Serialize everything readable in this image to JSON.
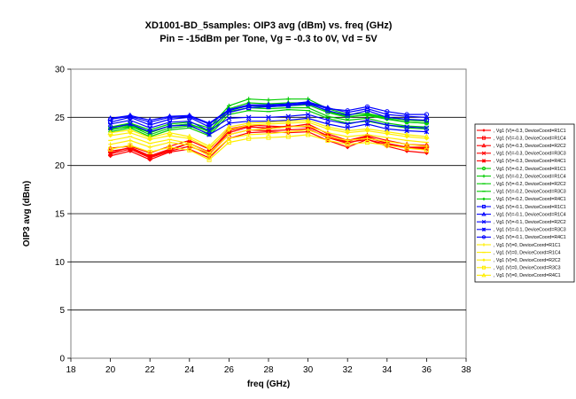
{
  "chart_data": {
    "type": "line",
    "title_line1": "XD1001-BD_5samples: OIP3 avg (dBm) vs. freq (GHz)",
    "title_line2": "Pin  = -15dBm per Tone, Vg = -0.3 to 0V, Vd = 5V",
    "xlabel": "freq (GHz)",
    "ylabel": "OIP3 avg (dBm)",
    "xlim": [
      18,
      38
    ],
    "ylim": [
      0,
      30
    ],
    "xticks": [
      18,
      20,
      22,
      24,
      26,
      28,
      30,
      32,
      34,
      36,
      38
    ],
    "yticks": [
      0,
      5,
      10,
      15,
      20,
      25,
      30
    ],
    "grid": "horizontal",
    "legend_position": "right",
    "x": [
      20,
      21,
      22,
      23,
      24,
      25,
      26,
      27,
      28,
      29,
      30,
      31,
      32,
      33,
      34,
      35,
      36
    ],
    "series": [
      {
        "name": ", Vg1 (V)=-0.3, DeviceCoord=R1C1",
        "color": "#ff0000",
        "marker": "diamond",
        "values": [
          21.0,
          21.5,
          20.6,
          21.4,
          21.7,
          20.8,
          22.8,
          23.4,
          23.5,
          23.4,
          23.5,
          22.6,
          21.9,
          22.7,
          22.0,
          21.5,
          21.3
        ]
      },
      {
        "name": ", Vg1 (V)=-0.3, DeviceCoord=R1C4",
        "color": "#ff0000",
        "marker": "square",
        "values": [
          21.5,
          21.8,
          20.9,
          21.6,
          22.3,
          21.4,
          23.6,
          24.1,
          23.8,
          24.0,
          24.1,
          23.0,
          22.4,
          22.7,
          22.2,
          21.9,
          21.8
        ]
      },
      {
        "name": ", Vg1 (V)=-0.3, DeviceCoord=R2C2",
        "color": "#ff0000",
        "marker": "triangle",
        "values": [
          21.8,
          22.0,
          21.3,
          22.0,
          22.6,
          21.7,
          23.8,
          24.2,
          24.1,
          24.0,
          24.3,
          23.3,
          22.6,
          23.1,
          22.6,
          22.2,
          22.1
        ]
      },
      {
        "name": ", Vg1 (V)=-0.3, DeviceCoord=R3C3",
        "color": "#ff0000",
        "marker": "x",
        "values": [
          21.2,
          21.7,
          20.8,
          21.5,
          22.0,
          21.2,
          23.2,
          23.7,
          23.6,
          23.7,
          23.8,
          22.9,
          22.3,
          22.9,
          22.3,
          21.8,
          21.7
        ]
      },
      {
        "name": ", Vg1 (V)=-0.3, DeviceCoord=R4C1",
        "color": "#ff0000",
        "marker": "star",
        "values": [
          21.3,
          21.9,
          21.0,
          21.7,
          22.3,
          21.3,
          23.4,
          24.0,
          23.9,
          24.1,
          24.0,
          23.1,
          22.5,
          23.0,
          22.3,
          21.9,
          21.9
        ]
      },
      {
        "name": ", Vg1 (V)=-0.2, DeviceCoord=R1C1",
        "color": "#00cc00",
        "marker": "circle",
        "values": [
          23.8,
          24.0,
          23.5,
          24.1,
          24.3,
          23.6,
          25.8,
          26.2,
          26.1,
          26.2,
          26.3,
          25.5,
          25.0,
          25.3,
          24.9,
          24.5,
          24.4
        ]
      },
      {
        "name": ", Vg1 (V)=-0.2, DeviceCoord=R1C4",
        "color": "#00cc00",
        "marker": "plus",
        "values": [
          24.0,
          24.4,
          23.7,
          24.3,
          24.5,
          23.9,
          26.2,
          26.9,
          26.8,
          26.9,
          26.9,
          25.9,
          25.3,
          25.4,
          25.0,
          24.7,
          24.6
        ]
      },
      {
        "name": ", Vg1 (V)=-0.2, DeviceCoord=R2C2",
        "color": "#00cc00",
        "marker": "dash",
        "values": [
          23.7,
          24.1,
          23.2,
          23.9,
          24.1,
          23.3,
          25.6,
          26.0,
          25.9,
          26.0,
          26.0,
          25.1,
          24.7,
          24.9,
          24.4,
          24.1,
          24.0
        ]
      },
      {
        "name": ", Vg1 (V)=-0.2, DeviceCoord=R3C3",
        "color": "#00cc00",
        "marker": "dash",
        "values": [
          23.5,
          23.9,
          23.0,
          23.7,
          23.9,
          23.1,
          25.3,
          25.7,
          25.6,
          25.8,
          25.7,
          24.9,
          24.4,
          24.6,
          24.2,
          23.9,
          23.8
        ]
      },
      {
        "name": ", Vg1 (V)=-0.2, DeviceCoord=R4C1",
        "color": "#00cc00",
        "marker": "diamond",
        "values": [
          23.9,
          24.2,
          23.4,
          24.1,
          24.3,
          23.5,
          25.9,
          26.5,
          26.4,
          26.5,
          26.5,
          25.6,
          25.1,
          25.2,
          24.8,
          24.5,
          24.4
        ]
      },
      {
        "name": ", Vg1 (V)=-0.1, DeviceCoord=R1C1",
        "color": "#0000ff",
        "marker": "square",
        "values": [
          24.5,
          25.0,
          24.2,
          24.8,
          25.0,
          24.0,
          25.5,
          26.0,
          26.1,
          26.2,
          26.4,
          25.7,
          25.2,
          25.7,
          25.0,
          24.8,
          24.7
        ]
      },
      {
        "name": ", Vg1 (V)=-0.1, DeviceCoord=R1C4",
        "color": "#0000ff",
        "marker": "triangle",
        "values": [
          24.9,
          25.2,
          24.7,
          25.1,
          25.2,
          24.4,
          25.8,
          26.3,
          26.3,
          26.4,
          26.6,
          26.0,
          25.5,
          25.9,
          25.3,
          25.1,
          25.0
        ]
      },
      {
        "name": ", Vg1 (V)=-0.1, DeviceCoord=R2C2",
        "color": "#0000ff",
        "marker": "x",
        "values": [
          24.3,
          24.7,
          23.9,
          24.5,
          24.6,
          23.6,
          24.9,
          25.0,
          25.0,
          25.1,
          25.3,
          24.7,
          24.3,
          24.7,
          24.2,
          24.0,
          23.9
        ]
      },
      {
        "name": ", Vg1 (V)=-0.1, DeviceCoord=R3C3",
        "color": "#0000ff",
        "marker": "star",
        "values": [
          23.9,
          24.3,
          23.5,
          24.1,
          24.2,
          23.2,
          24.4,
          24.6,
          24.6,
          24.7,
          24.9,
          24.3,
          23.9,
          24.3,
          23.8,
          23.6,
          23.5
        ]
      },
      {
        "name": ", Vg1 (V)=-0.1, DeviceCoord=R4C1",
        "color": "#0000ff",
        "marker": "circle",
        "values": [
          24.8,
          25.1,
          24.5,
          25.0,
          25.1,
          24.3,
          25.7,
          26.2,
          26.2,
          26.3,
          26.5,
          25.9,
          25.7,
          26.1,
          25.6,
          25.3,
          25.3
        ]
      },
      {
        "name": ", Vg1 (V)=0, DeviceCoord=R1C1",
        "color": "#ffee00",
        "marker": "plus",
        "values": [
          22.2,
          22.6,
          21.9,
          22.4,
          22.1,
          21.0,
          22.8,
          23.2,
          23.3,
          23.5,
          23.7,
          23.0,
          22.6,
          22.8,
          22.5,
          22.2,
          22.0
        ]
      },
      {
        "name": ", Vg1 (V)=0, DeviceCoord=R1C4",
        "color": "#ffee00",
        "marker": "dash",
        "values": [
          22.6,
          23.0,
          22.3,
          22.7,
          22.3,
          21.3,
          23.2,
          23.7,
          23.8,
          24.0,
          24.1,
          23.4,
          23.0,
          23.2,
          22.9,
          22.6,
          22.4
        ]
      },
      {
        "name": ", Vg1 (V)=0, DeviceCoord=R2C2",
        "color": "#ffee00",
        "marker": "diamond",
        "values": [
          23.1,
          23.4,
          22.7,
          23.1,
          22.8,
          21.8,
          23.7,
          24.2,
          24.3,
          24.4,
          24.5,
          23.8,
          23.4,
          23.6,
          23.3,
          23.0,
          22.8
        ]
      },
      {
        "name": ", Vg1 (V)=0, DeviceCoord=R3C3",
        "color": "#ffee00",
        "marker": "square",
        "values": [
          21.7,
          22.1,
          21.4,
          21.9,
          21.6,
          20.6,
          22.4,
          22.8,
          22.9,
          23.0,
          23.2,
          22.6,
          22.2,
          22.4,
          22.1,
          21.8,
          21.6
        ]
      },
      {
        "name": ", Vg1 (V)=0, DeviceCoord=R4C1",
        "color": "#ffee00",
        "marker": "triangle",
        "values": [
          23.4,
          23.7,
          22.9,
          23.4,
          23.0,
          22.0,
          24.0,
          24.4,
          24.5,
          24.6,
          24.7,
          24.0,
          23.6,
          23.8,
          23.5,
          23.2,
          23.0
        ]
      }
    ]
  }
}
